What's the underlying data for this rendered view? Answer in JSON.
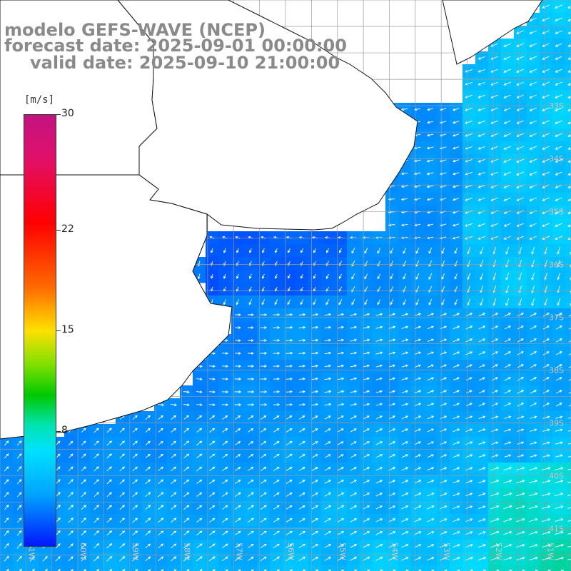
{
  "title": {
    "line1": "modelo GEFS-WAVE (NCEP)",
    "line2": "forecast date: 2025-09-01 00:00:00",
    "line3": "valid date: 2025-09-10 21:00:00"
  },
  "colorbar": {
    "unit": "[m/s]",
    "ticks": [
      {
        "label": "30",
        "value": 30
      },
      {
        "label": "22",
        "value": 22
      },
      {
        "label": "15",
        "value": 15
      },
      {
        "label": "8",
        "value": 8
      }
    ],
    "range": [
      0,
      30
    ]
  },
  "map": {
    "lon_range": [
      -61.5,
      -50.5
    ],
    "lat_range": [
      -41.8,
      -31.0
    ],
    "lat_labels": [
      "33S",
      "34S",
      "35S",
      "36S",
      "37S",
      "38S",
      "39S",
      "40S",
      "41S"
    ],
    "lon_labels": [
      "61W",
      "60W",
      "59W",
      "58W",
      "57W",
      "56W",
      "55W",
      "54W",
      "53W",
      "52W",
      "51W"
    ],
    "colors": {
      "land": "#ffffff",
      "coast": "#111111",
      "grid": "#9a9a9a",
      "arrow": "#ffffff"
    }
  }
}
